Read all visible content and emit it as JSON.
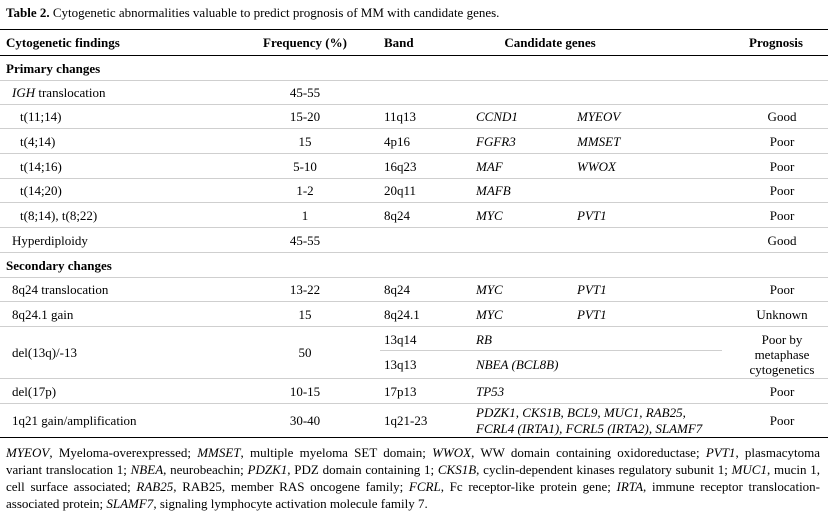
{
  "title": {
    "label": "Table 2.",
    "text": "Cytogenetic abnormalities valuable to predict prognosis of MM with candidate genes."
  },
  "headers": {
    "findings": "Cytogenetic findings",
    "frequency": "Frequency (%)",
    "band": "Band",
    "genes": "Candidate genes",
    "prognosis": "Prognosis"
  },
  "sections": {
    "primary": "Primary changes",
    "secondary": "Secondary changes"
  },
  "rows": {
    "igh": {
      "finding": "IGH",
      "finding_rest": " translocation",
      "freq": "45-55"
    },
    "t1114": {
      "finding": "t(11;14)",
      "freq": "15-20",
      "band": "11q13",
      "gene1": "CCND1",
      "gene2": "MYEOV",
      "prog": "Good"
    },
    "t414": {
      "finding": "t(4;14)",
      "freq": "15",
      "band": "4p16",
      "gene1": "FGFR3",
      "gene2": "MMSET",
      "prog": "Poor"
    },
    "t1416": {
      "finding": "t(14;16)",
      "freq": "5-10",
      "band": "16q23",
      "gene1": "MAF",
      "gene2": "WWOX",
      "prog": "Poor"
    },
    "t1420": {
      "finding": "t(14;20)",
      "freq": "1-2",
      "band": "20q11",
      "gene1": "MAFB",
      "prog": "Poor"
    },
    "t814": {
      "finding": "t(8;14), t(8;22)",
      "freq": "1",
      "band": "8q24",
      "gene1": "MYC",
      "gene2": "PVT1",
      "prog": "Poor"
    },
    "hyper": {
      "finding": "Hyperdiploidy",
      "freq": "45-55",
      "prog": "Good"
    },
    "q24trans": {
      "finding": "8q24 translocation",
      "freq": "13-22",
      "band": "8q24",
      "gene1": "MYC",
      "gene2": "PVT1",
      "prog": "Poor"
    },
    "q24gain": {
      "finding": "8q24.1 gain",
      "freq": "15",
      "band": "8q24.1",
      "gene1": "MYC",
      "gene2": "PVT1",
      "prog": "Unknown"
    },
    "del13": {
      "finding": "del(13q)/-13",
      "freq": "50",
      "band1": "13q14",
      "gene1": "RB",
      "band2": "13q13",
      "gene2": "NBEA (BCL8B)",
      "prog": "Poor by metaphase cytogenetics"
    },
    "del17": {
      "finding": "del(17p)",
      "freq": "10-15",
      "band": "17p13",
      "gene1": "TP53",
      "prog": "Poor"
    },
    "q21": {
      "finding": "1q21 gain/amplification",
      "freq": "30-40",
      "band": "1q21-23",
      "genes_line1": "PDZK1, CKS1B, BCL9, MUC1, RAB25,",
      "genes_line2": "FCRL4 (IRTA1), FCRL5 (IRTA2), SLAMF7",
      "prog": "Poor"
    }
  },
  "footnote": [
    {
      "abbr": "MYEOV",
      "def": ", Myeloma-overexpressed; "
    },
    {
      "abbr": "MMSET",
      "def": ", multiple myeloma SET domain; "
    },
    {
      "abbr": "WWOX",
      "def": ", WW domain containing oxidoreductase; "
    },
    {
      "abbr": "PVT1",
      "def": ", plasmacytoma variant translocation 1; "
    },
    {
      "abbr": "NBEA",
      "def": ", neurobeachin; "
    },
    {
      "abbr": "PDZK1",
      "def": ", PDZ domain containing 1; "
    },
    {
      "abbr": "CKS1B",
      "def": ", cyclin-dependent kinases regulatory subunit 1; "
    },
    {
      "abbr": "MUC1",
      "def": ", mucin 1, cell surface associated; "
    },
    {
      "abbr": "RAB25",
      "def": ", RAB25, member RAS oncogene family; "
    },
    {
      "abbr": "FCRL",
      "def": ", Fc receptor-like protein gene; "
    },
    {
      "abbr": "IRTA",
      "def": ", immune receptor translocation-associated  protein; "
    },
    {
      "abbr": "SLAMF7",
      "def": ", signaling lymphocyte activation molecule family 7."
    }
  ]
}
